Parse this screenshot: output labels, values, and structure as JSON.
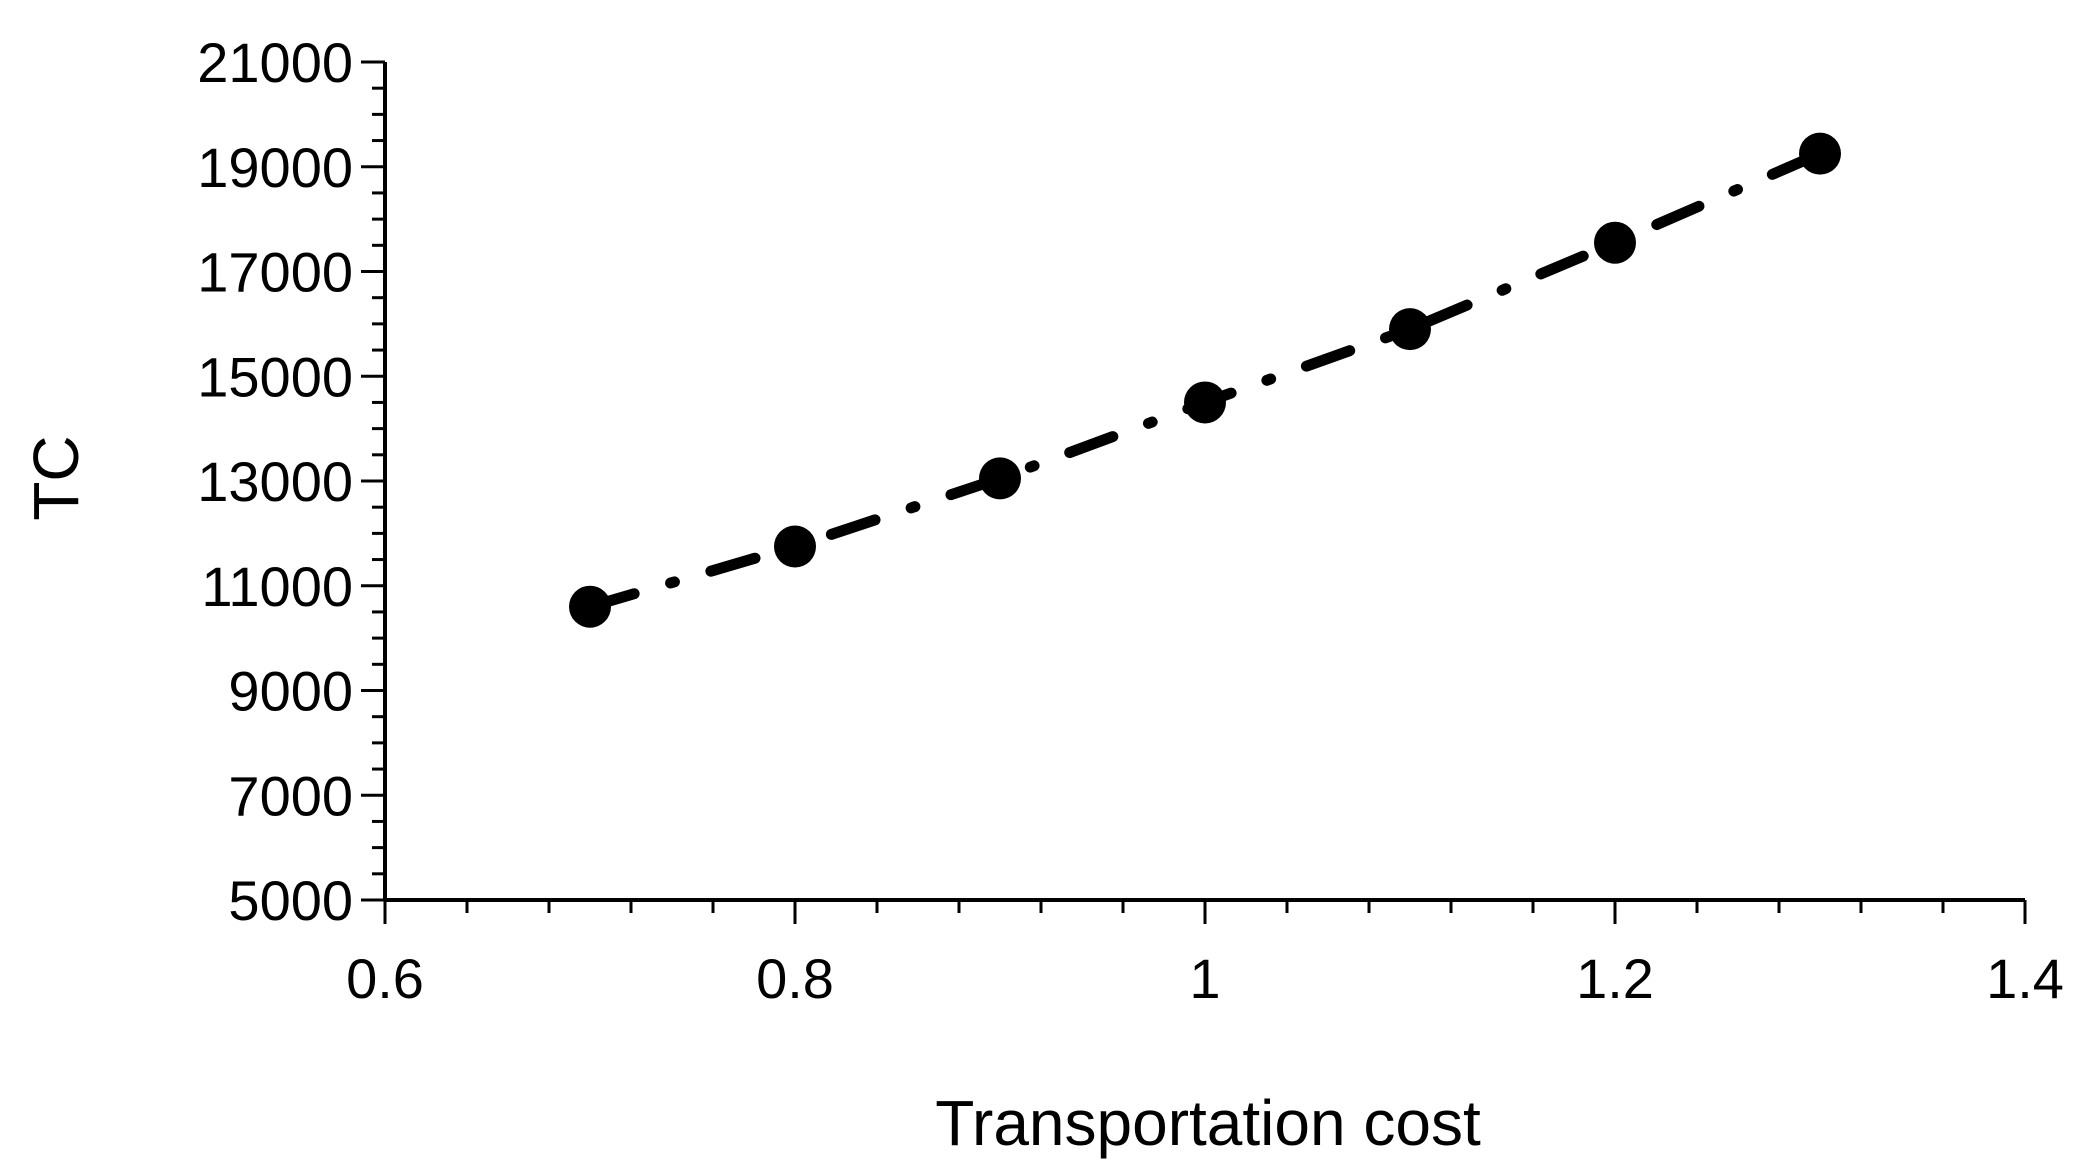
{
  "chart_data": {
    "type": "line",
    "title": "",
    "xlabel": "Transportation cost",
    "ylabel": "TC",
    "xlim": [
      0.6,
      1.4
    ],
    "ylim": [
      5000,
      21000
    ],
    "x_ticks": [
      0.6,
      0.8,
      1,
      1.2,
      1.4
    ],
    "x_tick_labels": [
      "0.6",
      "0.8",
      "1",
      "1.2",
      "1.4"
    ],
    "y_ticks": [
      5000,
      7000,
      9000,
      11000,
      13000,
      15000,
      17000,
      19000,
      21000
    ],
    "y_tick_labels": [
      "5000",
      "7000",
      "9000",
      "11000",
      "13000",
      "15000",
      "17000",
      "19000",
      "21000"
    ],
    "grid": false,
    "legend": "none",
    "line_style": "dash-dot",
    "marker": "filled-circle",
    "series_color": "#000000",
    "series": [
      {
        "x": [
          0.7,
          0.8,
          0.9,
          1.0,
          1.1,
          1.2,
          1.3
        ],
        "values": [
          10600,
          11750,
          13050,
          14500,
          15900,
          17550,
          19250
        ]
      }
    ]
  }
}
